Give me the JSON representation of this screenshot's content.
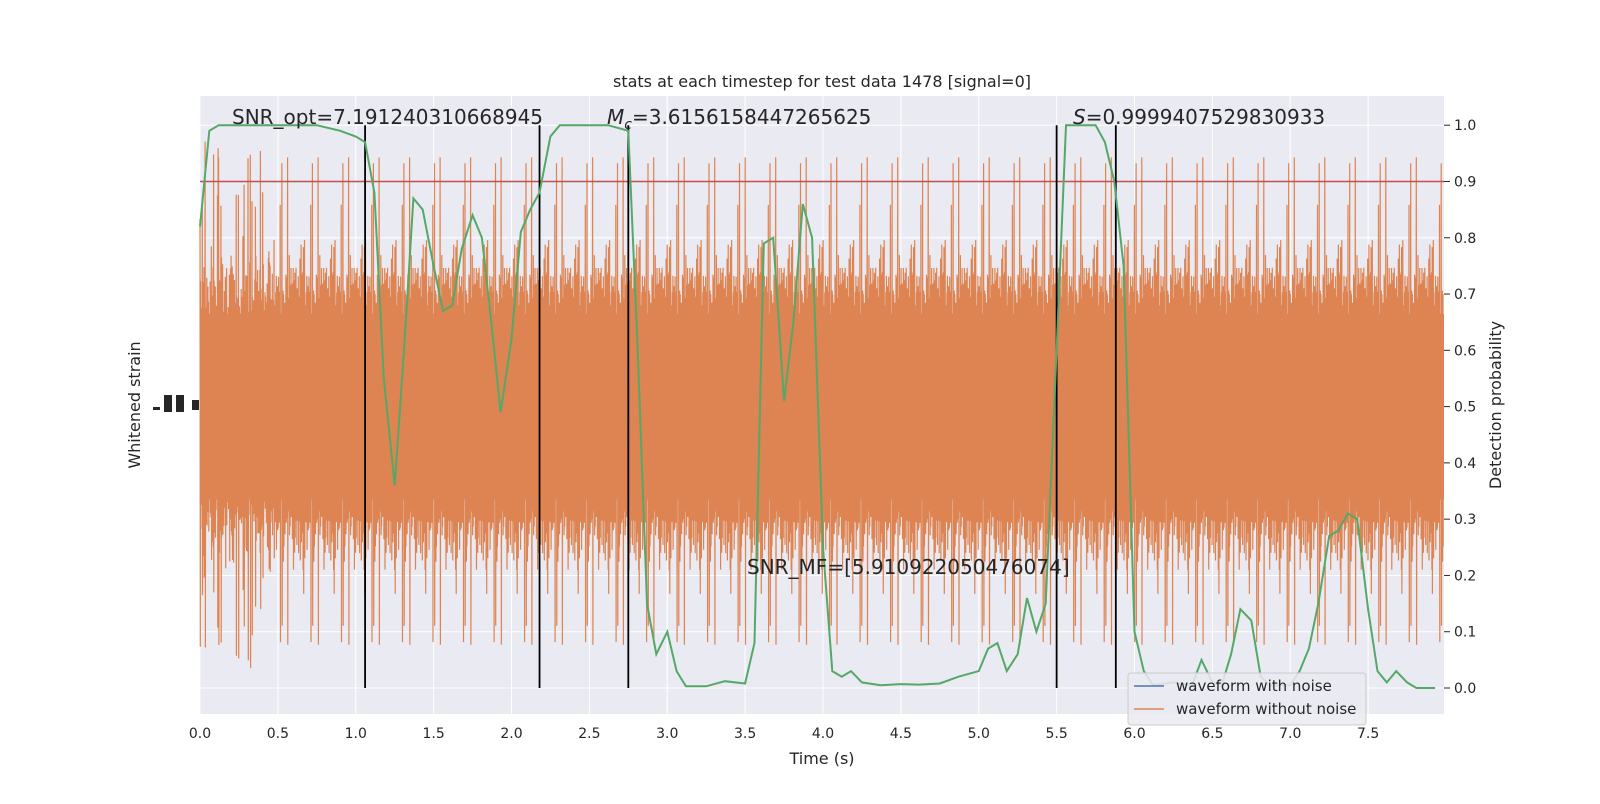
{
  "chart_data": {
    "type": "line",
    "title": "stats at each timestep for test data 1478 [signal=0]",
    "xlabel": "Time (s)",
    "ylabel_left": "Whitened strain",
    "ylabel_right": "Detection probability",
    "xlim": [
      0,
      8
    ],
    "ylim_right": [
      -0.05,
      1.05
    ],
    "x_ticks": [
      "0.0",
      "0.5",
      "1.0",
      "1.5",
      "2.0",
      "2.5",
      "3.0",
      "3.5",
      "4.0",
      "4.5",
      "5.0",
      "5.5",
      "6.0",
      "6.5",
      "7.0",
      "7.5"
    ],
    "y_ticks_right": [
      "0.0",
      "0.1",
      "0.2",
      "0.3",
      "0.4",
      "0.5",
      "0.6",
      "0.7",
      "0.8",
      "0.9",
      "1.0"
    ],
    "grid": true,
    "legend_placement": "lower-right",
    "annotations": {
      "snr_opt": "SNR_opt=7.191240310668945",
      "mc_symbol": "M",
      "mc_subscript": "c",
      "mc_value": "=3.6156158447265625",
      "s_symbol": "S",
      "s_value": "=0.9999407529830933",
      "snr_mf": "SNR_MF=[5.910922050476074]"
    },
    "threshold": {
      "value": 0.9,
      "color": "#c44e52"
    },
    "vertical_lines_x": [
      1.06,
      2.18,
      2.75,
      5.5,
      5.88
    ],
    "series": [
      {
        "name": "waveform with noise",
        "color": "#4c72b0",
        "kind": "strain"
      },
      {
        "name": "waveform without noise",
        "color": "#dd8452",
        "kind": "strain_noise_band",
        "band_center": 0.5,
        "band_halfwidth": 0.3,
        "spike_max": 0.5
      },
      {
        "color": "#55a868",
        "kind": "detection_probability",
        "x": [
          0.0,
          0.06,
          0.12,
          0.25,
          0.5,
          0.75,
          0.9,
          1.0,
          1.06,
          1.12,
          1.18,
          1.25,
          1.31,
          1.37,
          1.43,
          1.5,
          1.56,
          1.62,
          1.68,
          1.75,
          1.81,
          1.87,
          1.93,
          2.0,
          2.06,
          2.12,
          2.18,
          2.25,
          2.31,
          2.37,
          2.5,
          2.62,
          2.75,
          2.81,
          2.87,
          2.93,
          3.0,
          3.06,
          3.12,
          3.25,
          3.37,
          3.5,
          3.56,
          3.62,
          3.68,
          3.75,
          3.81,
          3.87,
          3.93,
          4.0,
          4.06,
          4.12,
          4.18,
          4.25,
          4.37,
          4.5,
          4.62,
          4.75,
          4.87,
          5.0,
          5.06,
          5.12,
          5.18,
          5.25,
          5.31,
          5.37,
          5.43,
          5.5,
          5.56,
          5.62,
          5.75,
          5.81,
          5.87,
          5.93,
          6.0,
          6.06,
          6.12,
          6.25,
          6.37,
          6.43,
          6.5,
          6.56,
          6.62,
          6.68,
          6.75,
          6.81,
          6.87,
          6.93,
          7.0,
          7.06,
          7.12,
          7.18,
          7.25,
          7.31,
          7.37,
          7.43,
          7.5,
          7.56,
          7.62,
          7.68,
          7.75,
          7.81,
          7.87,
          7.93
        ],
        "y": [
          0.82,
          0.99,
          1.0,
          1.0,
          1.0,
          1.0,
          0.99,
          0.98,
          0.97,
          0.88,
          0.55,
          0.36,
          0.6,
          0.87,
          0.85,
          0.75,
          0.67,
          0.68,
          0.78,
          0.84,
          0.8,
          0.65,
          0.49,
          0.62,
          0.81,
          0.85,
          0.88,
          0.98,
          1.0,
          1.0,
          1.0,
          1.0,
          0.99,
          0.6,
          0.15,
          0.06,
          0.1,
          0.03,
          0.003,
          0.003,
          0.012,
          0.008,
          0.08,
          0.79,
          0.8,
          0.51,
          0.65,
          0.86,
          0.8,
          0.25,
          0.03,
          0.02,
          0.03,
          0.01,
          0.005,
          0.007,
          0.006,
          0.008,
          0.02,
          0.03,
          0.07,
          0.08,
          0.03,
          0.06,
          0.16,
          0.1,
          0.15,
          0.6,
          1.0,
          1.0,
          1.0,
          0.97,
          0.9,
          0.75,
          0.1,
          0.03,
          0.005,
          0.01,
          0.005,
          0.05,
          0.01,
          0.005,
          0.06,
          0.14,
          0.12,
          0.02,
          0.005,
          0.005,
          0.005,
          0.03,
          0.07,
          0.15,
          0.27,
          0.28,
          0.31,
          0.3,
          0.14,
          0.03,
          0.01,
          0.03,
          0.01,
          0.0,
          0.0,
          0.0
        ]
      }
    ]
  }
}
